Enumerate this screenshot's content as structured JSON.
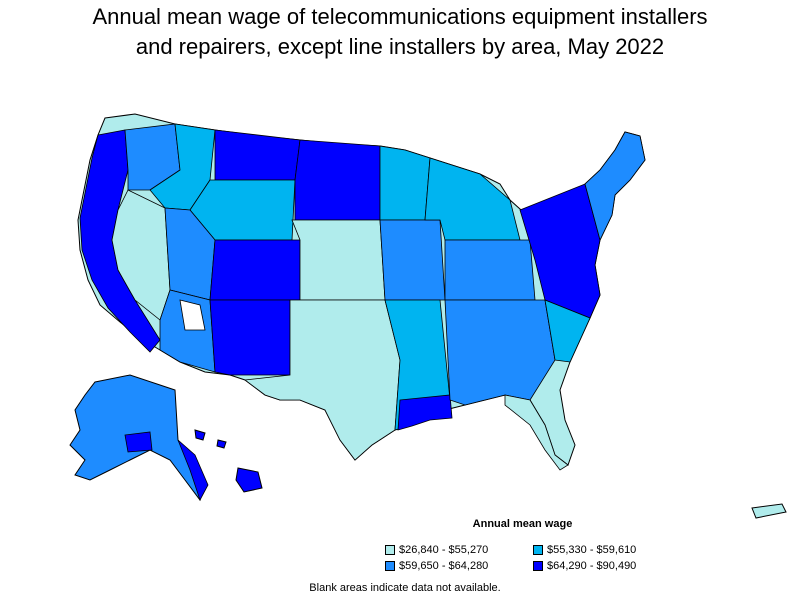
{
  "title_line1": "Annual mean wage of telecommunications equipment installers",
  "title_line2": "and repairers, except line installers by area, May 2022",
  "colors": {
    "c1": "#b0ecec",
    "c2": "#00b4f0",
    "c3": "#1e8cff",
    "c4": "#0000ff",
    "border": "#000000"
  },
  "legend": {
    "title": "Annual mean wage",
    "items": [
      {
        "label": "$26,840 - $55,270",
        "color": "#b0ecec"
      },
      {
        "label": "$55,330 - $59,610",
        "color": "#00b4f0"
      },
      {
        "label": "$59,650 - $64,280",
        "color": "#1e8cff"
      },
      {
        "label": "$64,290 - $90,490",
        "color": "#0000ff"
      }
    ]
  },
  "footnote": "Blank areas indicate data not available."
}
